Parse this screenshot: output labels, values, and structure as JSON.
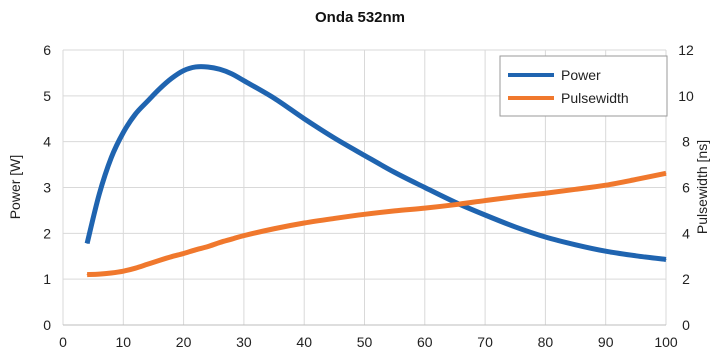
{
  "chart_data": {
    "type": "line",
    "title": "Onda 532nm",
    "xlabel": "",
    "ylabel": "Power [W]",
    "y2label": "Pulsewidth [ns]",
    "xlim": [
      0,
      100
    ],
    "ylim": [
      0,
      6
    ],
    "y2lim": [
      0,
      12
    ],
    "x_ticks": [
      "0",
      "10",
      "20",
      "30",
      "40",
      "50",
      "60",
      "70",
      "80",
      "90",
      "100"
    ],
    "y_ticks": [
      "0",
      "1",
      "2",
      "3",
      "4",
      "5",
      "6"
    ],
    "y2_ticks": [
      "0",
      "2",
      "4",
      "6",
      "8",
      "10",
      "12"
    ],
    "grid": true,
    "legend_position": "top-right",
    "series": [
      {
        "name": "Power",
        "axis": "left",
        "color": "#1f64b0",
        "x": [
          4,
          6,
          8,
          10,
          12,
          14,
          16,
          18,
          20,
          22,
          24,
          26,
          28,
          30,
          35,
          40,
          45,
          50,
          55,
          60,
          65,
          70,
          75,
          80,
          85,
          90,
          95,
          100
        ],
        "values": [
          1.78,
          2.85,
          3.65,
          4.2,
          4.6,
          4.88,
          5.15,
          5.38,
          5.55,
          5.63,
          5.63,
          5.58,
          5.48,
          5.33,
          4.95,
          4.5,
          4.08,
          3.7,
          3.33,
          3.0,
          2.68,
          2.4,
          2.14,
          1.92,
          1.75,
          1.61,
          1.51,
          1.43
        ]
      },
      {
        "name": "Pulsewidth",
        "axis": "right",
        "color": "#f0782d",
        "x": [
          4,
          6,
          8,
          10,
          12,
          14,
          16,
          18,
          20,
          22,
          24,
          26,
          28,
          30,
          35,
          40,
          45,
          50,
          55,
          60,
          65,
          70,
          75,
          80,
          85,
          90,
          95,
          100
        ],
        "values": [
          2.2,
          2.22,
          2.27,
          2.35,
          2.48,
          2.65,
          2.82,
          2.98,
          3.12,
          3.28,
          3.42,
          3.6,
          3.75,
          3.9,
          4.2,
          4.45,
          4.65,
          4.83,
          4.98,
          5.1,
          5.25,
          5.43,
          5.6,
          5.75,
          5.92,
          6.1,
          6.35,
          6.62
        ]
      }
    ]
  }
}
